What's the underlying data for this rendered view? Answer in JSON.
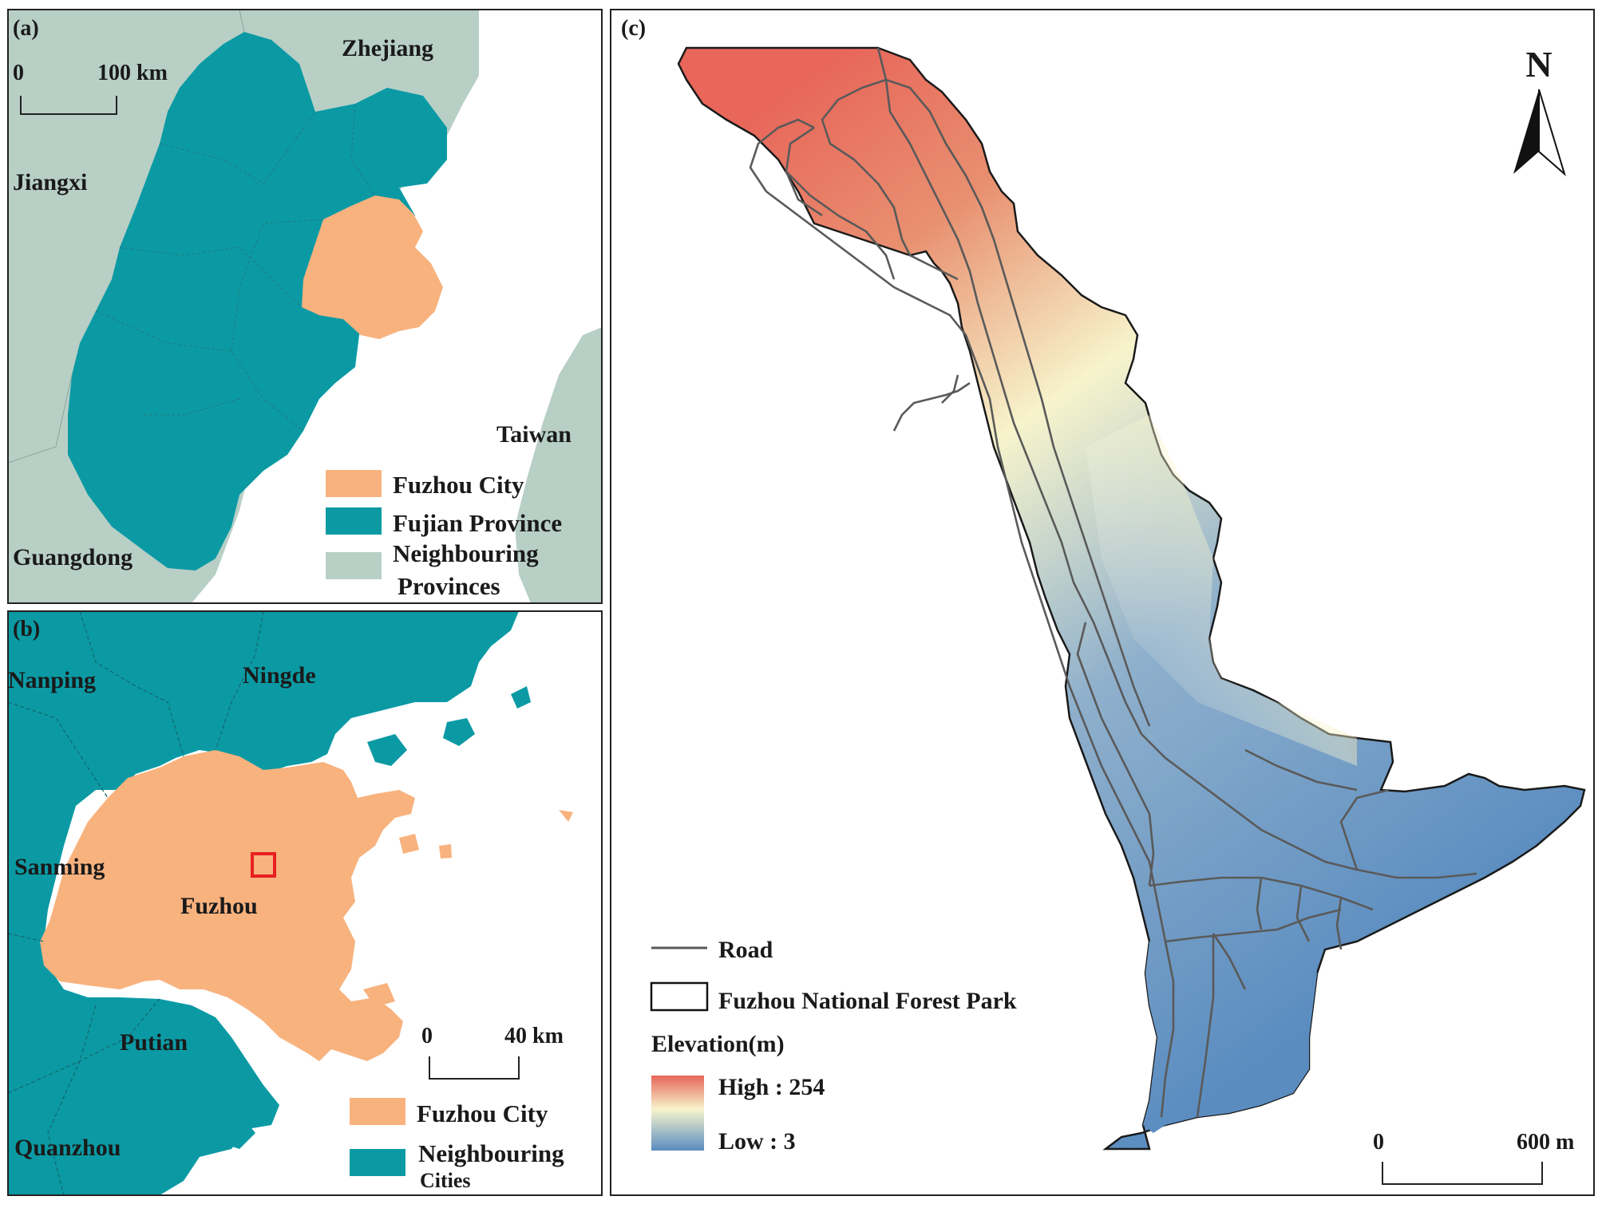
{
  "colors": {
    "fuzhou": "#f8b27e",
    "fujian": "#0b9aa4",
    "neighbour": "#b8cfc6",
    "sea": "#ffffff",
    "road": "#5a5a5a",
    "elev_high": "#e8665a",
    "elev_mid": "#f7f4cc",
    "elev_low": "#5a8cc0",
    "highlight_box": "#e82020"
  },
  "panel_a": {
    "label": "(a)",
    "scale_zero": "0",
    "scale_end": "100 km",
    "places": {
      "zhejiang": "Zhejiang",
      "jiangxi": "Jiangxi",
      "taiwan": "Taiwan",
      "guangdong": "Guangdong"
    },
    "legend": {
      "fuzhou": "Fuzhou City",
      "fujian": "Fujian Province",
      "neighbour_line1": "Neighbouring",
      "neighbour_line2": "Provinces"
    }
  },
  "panel_b": {
    "label": "(b)",
    "scale_zero": "0",
    "scale_end": "40 km",
    "places": {
      "nanping": "Nanping",
      "ningde": "Ningde",
      "sanming": "Sanming",
      "fuzhou": "Fuzhou",
      "putian": "Putian",
      "quanzhou": "Quanzhou"
    },
    "legend": {
      "fuzhou": "Fuzhou City",
      "neighbour_line1": "Neighbouring",
      "neighbour_line2": "Cities"
    }
  },
  "panel_c": {
    "label": "(c)",
    "north": "N",
    "scale_zero": "0",
    "scale_end": "600 m",
    "legend": {
      "road": "Road",
      "park": "Fuzhou National Forest Park",
      "elevation_title": "Elevation(m)",
      "high": "High : 254",
      "low": "Low : 3"
    }
  }
}
